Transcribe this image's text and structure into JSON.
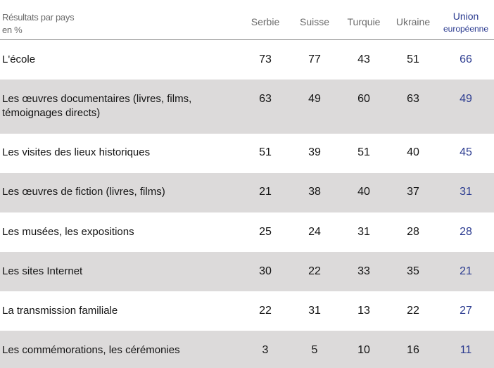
{
  "table": {
    "header": {
      "title_line1": "Résultats par pays",
      "title_line2": "en %",
      "columns": [
        {
          "label": "Serbie"
        },
        {
          "label": "Suisse"
        },
        {
          "label": "Turquie"
        },
        {
          "label": "Ukraine"
        },
        {
          "label_line1": "Union",
          "label_line2": "européenne"
        }
      ]
    },
    "accent_color": "#2a3a8f",
    "stripe_color": "#dcdada",
    "rows": [
      {
        "label": "L'école",
        "values": [
          "73",
          "77",
          "43",
          "51",
          "66"
        ]
      },
      {
        "label": "Les œuvres documentaires (livres, films, témoignages directs)",
        "values": [
          "63",
          "49",
          "60",
          "63",
          "49"
        ]
      },
      {
        "label": "Les visites des lieux historiques",
        "values": [
          "51",
          "39",
          "51",
          "40",
          "45"
        ]
      },
      {
        "label": "Les œuvres de fiction (livres, films)",
        "values": [
          "21",
          "38",
          "40",
          "37",
          "31"
        ]
      },
      {
        "label": "Les musées, les expositions",
        "values": [
          "25",
          "24",
          "31",
          "28",
          "28"
        ]
      },
      {
        "label": "Les sites Internet",
        "values": [
          "30",
          "22",
          "33",
          "35",
          "21"
        ]
      },
      {
        "label": "La transmission familiale",
        "values": [
          "22",
          "31",
          "13",
          "22",
          "27"
        ]
      },
      {
        "label": "Les commémorations, les cérémonies",
        "values": [
          "3",
          "5",
          "10",
          "16",
          "11"
        ]
      }
    ]
  }
}
